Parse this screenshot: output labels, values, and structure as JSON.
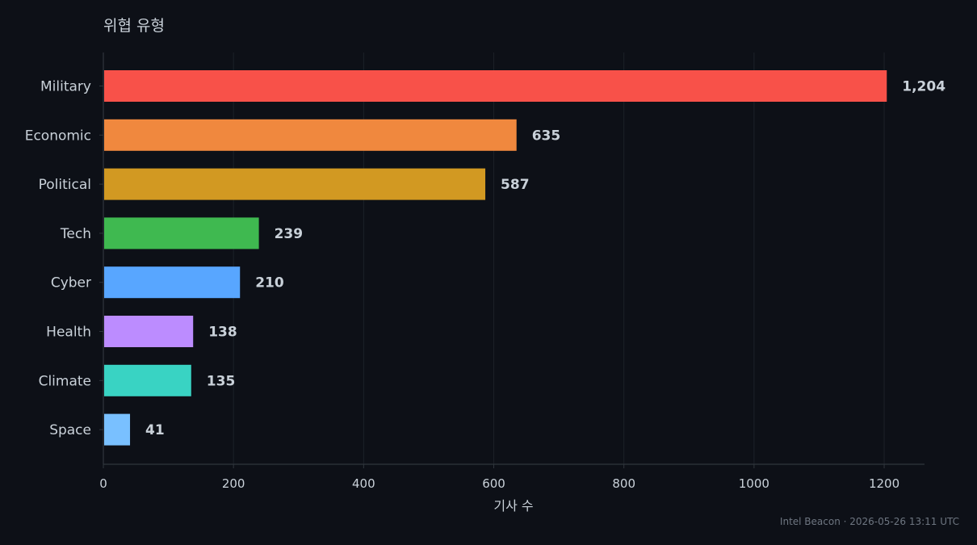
{
  "chart_data": {
    "type": "bar",
    "orientation": "horizontal",
    "title": "위협 유형",
    "xlabel": "기사 수",
    "ylabel": "",
    "xlim": [
      0,
      1262
    ],
    "xticks": [
      0,
      200,
      400,
      600,
      800,
      1000,
      1200
    ],
    "grid": true,
    "categories": [
      "Military",
      "Economic",
      "Political",
      "Tech",
      "Cyber",
      "Health",
      "Climate",
      "Space"
    ],
    "values": [
      1204,
      635,
      587,
      239,
      210,
      138,
      135,
      41
    ],
    "value_labels": [
      "1,204",
      "635",
      "587",
      "239",
      "210",
      "138",
      "135",
      "41"
    ],
    "colors": [
      "#f85149",
      "#f0883e",
      "#d29922",
      "#3fb950",
      "#58a6ff",
      "#bc8cff",
      "#39d3c3",
      "#79c0ff"
    ]
  },
  "footer": {
    "credit": "Intel Beacon · 2026-05-26 13:11 UTC"
  },
  "theme": {
    "background": "#0d1017",
    "text": "#c9d1d9",
    "muted": "#6e7681",
    "grid": "#1c2128",
    "axis": "#30363d"
  }
}
